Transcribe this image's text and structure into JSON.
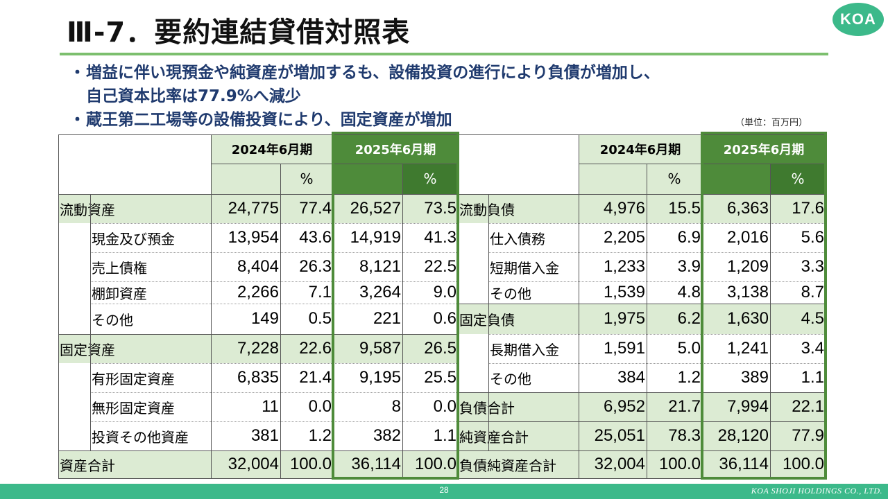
{
  "header": {
    "title": "Ⅲ-7．要約連結貸借対照表",
    "logo": "KOA"
  },
  "bullets": [
    "増益に伴い現預金や純資産が増加するも、設備投資の進行により負債が増加し、",
    "自己資本比率は77.9%へ減少",
    "蔵王第二工場等の設備投資により、固定資産が増加"
  ],
  "unit_note": "（単位：百万円）",
  "table": {
    "periods": [
      "2024年6月期",
      "2025年6月期"
    ],
    "pct_label": "%",
    "assets": [
      {
        "label": "流動資産",
        "v1": "24,775",
        "p1": "77.4",
        "v2": "26,527",
        "p2": "73.5"
      },
      {
        "label": "現金及び預金",
        "v1": "13,954",
        "p1": "43.6",
        "v2": "14,919",
        "p2": "41.3"
      },
      {
        "label": "売上債権",
        "v1": "8,404",
        "p1": "26.3",
        "v2": "8,121",
        "p2": "22.5"
      },
      {
        "label": "棚卸資産",
        "v1": "2,266",
        "p1": "7.1",
        "v2": "3,264",
        "p2": "9.0"
      },
      {
        "label": "その他",
        "v1": "149",
        "p1": "0.5",
        "v2": "221",
        "p2": "0.6"
      },
      {
        "label": "固定資産",
        "v1": "7,228",
        "p1": "22.6",
        "v2": "9,587",
        "p2": "26.5"
      },
      {
        "label": "有形固定資産",
        "v1": "6,835",
        "p1": "21.4",
        "v2": "9,195",
        "p2": "25.5"
      },
      {
        "label": "無形固定資産",
        "v1": "11",
        "p1": "0.0",
        "v2": "8",
        "p2": "0.0"
      },
      {
        "label": "投資その他資産",
        "v1": "381",
        "p1": "1.2",
        "v2": "382",
        "p2": "1.1"
      },
      {
        "label": "資産合計",
        "v1": "32,004",
        "p1": "100.0",
        "v2": "36,114",
        "p2": "100.0"
      }
    ],
    "liabilities": [
      {
        "label": "流動負債",
        "v1": "4,976",
        "p1": "15.5",
        "v2": "6,363",
        "p2": "17.6"
      },
      {
        "label": "仕入債務",
        "v1": "2,205",
        "p1": "6.9",
        "v2": "2,016",
        "p2": "5.6"
      },
      {
        "label": "短期借入金",
        "v1": "1,233",
        "p1": "3.9",
        "v2": "1,209",
        "p2": "3.3"
      },
      {
        "label": "その他",
        "v1": "1,539",
        "p1": "4.8",
        "v2": "3,138",
        "p2": "8.7"
      },
      {
        "label": "固定負債",
        "v1": "1,975",
        "p1": "6.2",
        "v2": "1,630",
        "p2": "4.5"
      },
      {
        "label": "長期借入金",
        "v1": "1,591",
        "p1": "5.0",
        "v2": "1,241",
        "p2": "3.4"
      },
      {
        "label": "その他",
        "v1": "384",
        "p1": "1.2",
        "v2": "389",
        "p2": "1.1"
      },
      {
        "label": "負債合計",
        "v1": "6,952",
        "p1": "21.7",
        "v2": "7,994",
        "p2": "22.1"
      },
      {
        "label": "純資産合計",
        "v1": "25,051",
        "p1": "78.3",
        "v2": "28,120",
        "p2": "77.9"
      },
      {
        "label": "負債純資産合計",
        "v1": "32,004",
        "p1": "100.0",
        "v2": "36,114",
        "p2": "100.0"
      }
    ]
  },
  "footer": {
    "page_number": "28",
    "company": "KOA SHOJI HOLDINGS CO., LTD."
  },
  "colors": {
    "accent_green": "#4e8b3a",
    "light_green": "#dcebd3",
    "footer_teal": "#3cb98a",
    "bullet_navy": "#1f3a6e"
  }
}
